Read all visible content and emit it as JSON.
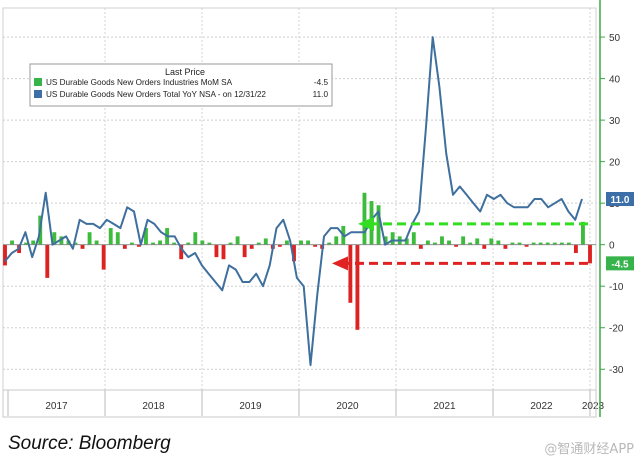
{
  "chart_data": {
    "type": "bar+line",
    "legend": {
      "header": "Last Price",
      "entries": [
        {
          "label": "US Durable Goods New Orders Industries MoM SA",
          "value": "-4.5",
          "color": "#36b34a"
        },
        {
          "label": "US Durable Goods New Orders Total YoY NSA - on 12/31/22",
          "value": "11.0",
          "color": "#3c6ea8"
        }
      ]
    },
    "x_labels": [
      "2017",
      "2018",
      "2019",
      "2020",
      "2021",
      "2022",
      "2023"
    ],
    "y_ticks": [
      "50",
      "40",
      "30",
      "20",
      "10",
      "0",
      "-10",
      "-20",
      "-30"
    ],
    "ylim": [
      -35,
      57
    ],
    "last_value_tags": [
      {
        "text": "11.0",
        "value": 11,
        "color": "#3c6ea8"
      },
      {
        "text": "-4.5",
        "value": -4.5,
        "color": "#36b34a"
      }
    ],
    "mom_series": [
      -5,
      1,
      -2,
      0.5,
      1,
      7,
      -8,
      3,
      2,
      1,
      0.5,
      -1,
      3,
      1,
      -6,
      4,
      3,
      -1,
      0.5,
      -0.5,
      4,
      0.5,
      1,
      4,
      0.5,
      -3.5,
      0.5,
      3,
      1,
      0.5,
      -3,
      -3.5,
      0.5,
      2,
      -3,
      -1,
      0.5,
      1.5,
      -1,
      -0.5,
      1,
      -4,
      1,
      1,
      -0.5,
      -1,
      0.5,
      2,
      4.5,
      -14,
      -20.5,
      12.5,
      10.5,
      9.5,
      2,
      3,
      2,
      1.5,
      3,
      -1,
      1,
      0.5,
      2,
      1,
      -0.5,
      2,
      0.5,
      1.5,
      -1,
      1.5,
      1,
      -1,
      0.5,
      0.5,
      -0.5,
      0.5,
      0.5,
      0.5,
      0.5,
      0.5,
      0.5,
      -2,
      5.5,
      -4.5
    ],
    "yoy_series": [
      -4,
      -2,
      -1,
      3,
      -3,
      2,
      12.5,
      0,
      1,
      2,
      -1,
      6,
      5,
      5,
      4,
      6,
      5,
      4,
      9,
      8,
      0,
      6,
      5,
      3,
      2,
      2,
      -1,
      -3,
      -2,
      -5,
      -7,
      -9,
      -11,
      -5,
      -6,
      -9,
      -9,
      -7,
      -10,
      -5,
      4,
      6,
      1,
      -8,
      -10,
      -29,
      -12,
      2,
      4,
      4,
      2,
      3,
      3,
      3,
      6,
      8,
      0,
      1,
      1,
      1,
      5,
      8,
      28,
      50,
      38,
      22,
      12,
      14,
      12,
      10,
      8,
      12,
      11,
      12,
      10,
      9,
      9,
      9,
      11,
      11,
      9,
      10,
      11,
      8,
      6,
      11
    ]
  },
  "footer": {
    "source": "Source: Bloomberg",
    "watermark": "@智通财经APP"
  }
}
